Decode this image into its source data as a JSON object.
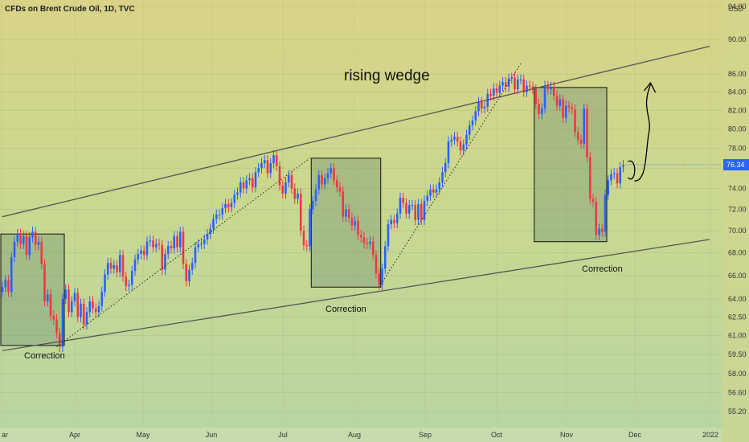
{
  "symbol_title": "CFDs on Brent Crude Oil, 1D, TVC",
  "currency": "USD",
  "chart_data": {
    "type": "candlestick",
    "title": "CFDs on Brent Crude Oil, 1D, TVC",
    "yaxis_unit": "USD",
    "y_scale": "log",
    "ylim": [
      54.0,
      94.0
    ],
    "y_ticks": [
      55.2,
      56.6,
      58.0,
      59.5,
      61.0,
      62.5,
      64.0,
      66.0,
      68.0,
      70.0,
      72.0,
      74.0,
      76.0,
      78.0,
      80.0,
      82.0,
      84.0,
      86.0,
      90.0,
      94.0
    ],
    "y_tick_labels": [
      "55.20",
      "56.60",
      "58.00",
      "59.50",
      "61.00",
      "62.50",
      "64.00",
      "66.00",
      "68.00",
      "70.00",
      "72.00",
      "74.00",
      "76.00",
      "78.00",
      "80.00",
      "82.00",
      "84.00",
      "86.00",
      "90.00",
      "94.00"
    ],
    "x_labels": [
      "ar",
      "Apr",
      "May",
      "Jun",
      "Jul",
      "Aug",
      "Sep",
      "Oct",
      "Nov",
      "Dec",
      "2022"
    ],
    "last_price": 76.34,
    "last_price_label": "76.34",
    "colors": {
      "up": "#2962ff",
      "down": "#f23645",
      "line": "#555555",
      "box_fill": "#6d8f72",
      "last_price": "#2962ff"
    },
    "candles_close": [
      65.0,
      65.6,
      64.6,
      67.6,
      69.0,
      69.7,
      68.8,
      69.5,
      67.8,
      69.4,
      69.9,
      68.7,
      69.0,
      67.0,
      63.8,
      64.4,
      62.6,
      62.3,
      61.2,
      60.1,
      64.0,
      64.8,
      62.9,
      63.8,
      64.5,
      62.5,
      63.6,
      61.9,
      62.9,
      63.8,
      63.2,
      62.9,
      63.4,
      64.6,
      66.1,
      67.1,
      66.6,
      66.9,
      66.3,
      67.8,
      65.9,
      65.1,
      65.2,
      66.4,
      67.4,
      67.9,
      68.2,
      67.8,
      69.0,
      69.1,
      68.5,
      68.8,
      68.7,
      66.5,
      67.9,
      68.6,
      68.4,
      69.5,
      68.5,
      69.9,
      67.0,
      65.5,
      66.5,
      67.1,
      68.5,
      68.8,
      68.8,
      69.2,
      69.7,
      70.2,
      71.1,
      71.5,
      71.5,
      72.1,
      72.5,
      72.2,
      72.6,
      73.4,
      73.6,
      74.6,
      74.0,
      74.8,
      75.0,
      74.1,
      75.6,
      76.0,
      76.5,
      76.8,
      75.5,
      76.5,
      77.3,
      76.2,
      74.3,
      73.5,
      74.6,
      75.3,
      74.0,
      73.0,
      73.5,
      70.0,
      68.7,
      68.6,
      72.0,
      72.8,
      73.9,
      75.3,
      74.4,
      75.0,
      75.5,
      76.0,
      74.8,
      74.1,
      73.7,
      71.3,
      72.0,
      71.2,
      70.5,
      70.9,
      69.6,
      69.4,
      68.9,
      68.8,
      69.0,
      67.8,
      66.2,
      65.2,
      66.6,
      68.6,
      70.6,
      71.0,
      70.7,
      71.6,
      73.1,
      72.6,
      71.6,
      72.4,
      72.4,
      71.0,
      72.5,
      71.0,
      72.8,
      73.3,
      73.9,
      73.6,
      73.9,
      74.6,
      75.6,
      76.5,
      78.7,
      78.9,
      79.2,
      78.7,
      77.8,
      78.4,
      79.4,
      80.4,
      80.9,
      81.9,
      82.9,
      82.2,
      82.4,
      83.8,
      83.6,
      84.4,
      83.9,
      84.7,
      85.1,
      84.6,
      85.5,
      85.6,
      84.3,
      85.4,
      85.4,
      84.0,
      84.7,
      84.6,
      84.3,
      82.7,
      81.6,
      82.2,
      84.7,
      84.3,
      84.6,
      83.6,
      82.5,
      83.2,
      81.2,
      82.5,
      82.3,
      82.1,
      79.7,
      78.9,
      78.5,
      82.2,
      77.1,
      73.0,
      72.7,
      69.6,
      70.2,
      69.9,
      73.4,
      74.8,
      75.4,
      75.5,
      74.5,
      76.1,
      76.3
    ],
    "annotations": [
      {
        "text": "rising wedge",
        "type": "label"
      },
      {
        "text": "Correction",
        "type": "label"
      },
      {
        "text": "Correction",
        "type": "label"
      },
      {
        "text": "Correction",
        "type": "label"
      }
    ],
    "correction_zones": [
      {
        "from_index": 0,
        "to_index": 20,
        "high": 69.7,
        "low": 60.2
      },
      {
        "from_index": 103,
        "to_index": 125,
        "high": 77.0,
        "low": 65.0
      },
      {
        "from_index": 177,
        "to_index": 200,
        "high": 84.5,
        "low": 69.0
      }
    ],
    "trendlines": [
      {
        "name": "wedge-upper",
        "from_index": 0,
        "from_value": 71.3,
        "to_index": 216,
        "to_value": 89.2
      },
      {
        "name": "wedge-lower",
        "from_index": 0,
        "from_value": 59.8,
        "to_index": 216,
        "to_value": 69.2
      }
    ],
    "support_lines": [
      {
        "from_index": 18,
        "from_value": 60.1,
        "to_index": 102,
        "to_value": 77.0
      },
      {
        "from_index": 125,
        "from_value": 65.0,
        "to_index": 172,
        "to_value": 87.2
      }
    ],
    "grid": true,
    "legend": "none"
  },
  "annotations": {
    "wedge_label": "rising wedge",
    "correction_1": "Correction",
    "correction_2": "Correction",
    "correction_3": "Correction"
  }
}
